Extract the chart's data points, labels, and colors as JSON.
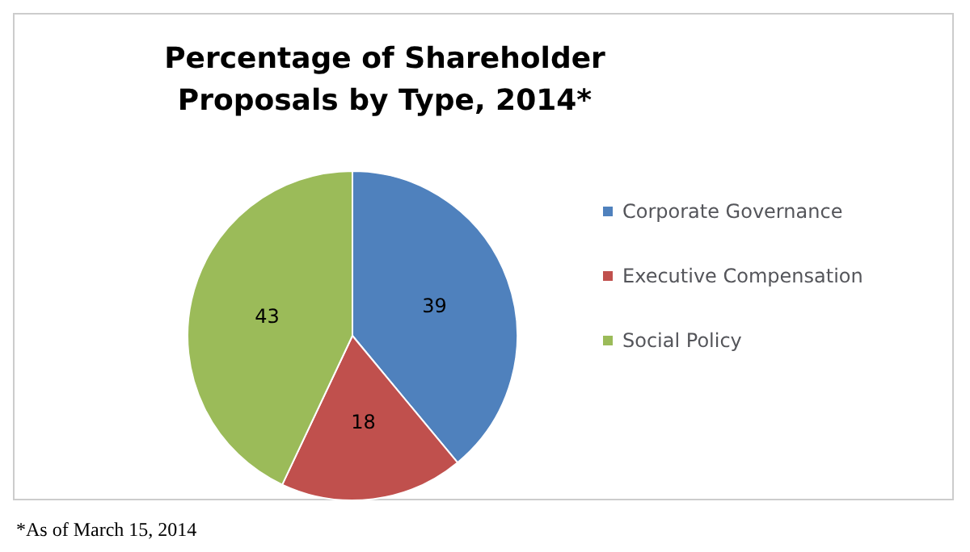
{
  "chart_data": {
    "type": "pie",
    "title": "Percentage of Shareholder Proposals by Type, 2014*",
    "categories": [
      "Corporate Governance",
      "Executive Compensation",
      "Social Policy"
    ],
    "values": [
      39,
      18,
      43
    ],
    "colors": [
      "#4f81bd",
      "#c0504d",
      "#9bbb59"
    ],
    "data_labels": true,
    "legend": "right",
    "annotations": [
      "*As of March 15, 2014"
    ]
  }
}
